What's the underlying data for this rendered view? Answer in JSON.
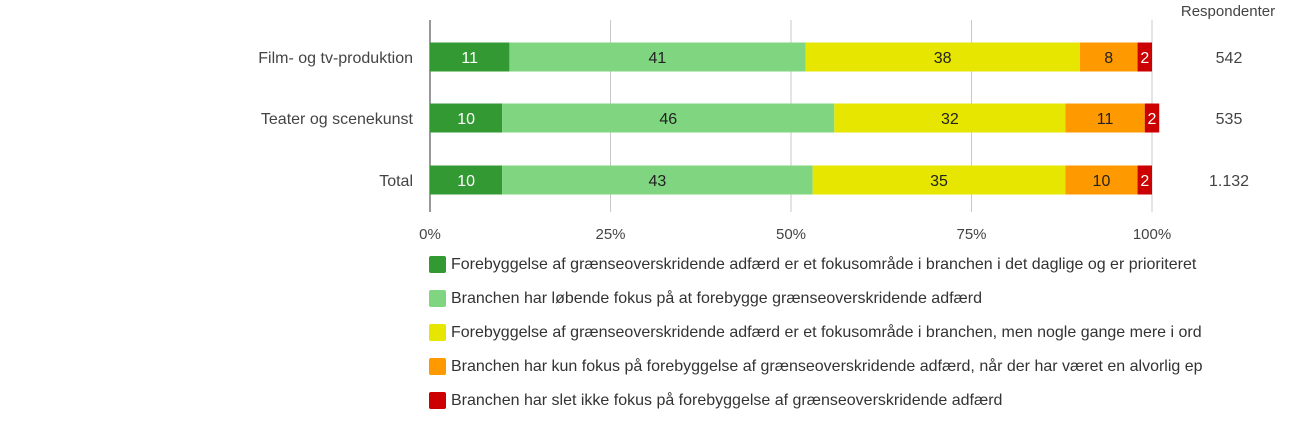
{
  "chart_data": {
    "type": "bar",
    "stacked": true,
    "orientation": "horizontal",
    "categories": [
      "Film- og tv-produktion",
      "Teater og scenekunst",
      "Total"
    ],
    "series": [
      {
        "name": "Forebyggelse af grænseoverskridende adfærd er et fokusområde i branchen i det daglige og er prioriteret",
        "color": "#339933",
        "values": [
          11,
          10,
          10
        ]
      },
      {
        "name": "Branchen har løbende fokus på at forebygge grænseoverskridende adfærd",
        "color": "#80d680",
        "values": [
          41,
          46,
          43
        ]
      },
      {
        "name": "Forebyggelse af grænseoverskridende adfærd er et fokusområde i branchen, men nogle gange mere i ord",
        "color": "#e6e600",
        "values": [
          38,
          32,
          35
        ]
      },
      {
        "name": "Branchen har kun fokus på forebyggelse af grænseoverskridende adfærd, når der har været en alvorlig ep",
        "color": "#ff9900",
        "values": [
          8,
          11,
          10
        ]
      },
      {
        "name": "Branchen har slet ikke fokus på forebyggelse af grænseoverskridende adfærd",
        "color": "#cc0000",
        "values": [
          2,
          2,
          2
        ]
      }
    ],
    "respondents_header": "Respondenter",
    "respondents": [
      "542",
      "535",
      "1.132"
    ],
    "x_ticks": [
      "0%",
      "25%",
      "50%",
      "75%",
      "100%"
    ],
    "xlim": [
      0,
      100
    ],
    "grid": true,
    "legend_position": "bottom"
  }
}
